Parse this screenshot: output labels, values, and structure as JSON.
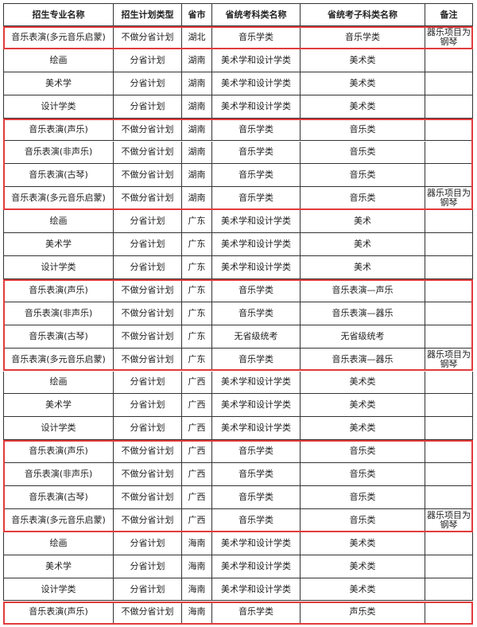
{
  "table": {
    "header": [
      "招生专业名称",
      "招生计划类型",
      "省市",
      "省统考科类名称",
      "省统考子科类名称",
      "备注"
    ],
    "rows": [
      [
        "音乐表演(多元音乐启蒙)",
        "不做分省计划",
        "湖北",
        "音乐学类",
        "音乐学类",
        "器乐项目为钢琴"
      ],
      [
        "绘画",
        "分省计划",
        "湖南",
        "美术学和设计学类",
        "美术类"
      ],
      [
        "美术学",
        "分省计划",
        "湖南",
        "美术学和设计学类",
        "美术类"
      ],
      [
        "设计学类",
        "分省计划",
        "湖南",
        "美术学和设计学类",
        "美术类"
      ],
      [
        "音乐表演(声乐)",
        "不做分省计划",
        "湖南",
        "音乐学类",
        "音乐类"
      ],
      [
        "音乐表演(非声乐)",
        "不做分省计划",
        "湖南",
        "音乐学类",
        "音乐类"
      ],
      [
        "音乐表演(古琴)",
        "不做分省计划",
        "湖南",
        "音乐学类",
        "音乐类"
      ],
      [
        "音乐表演(多元音乐启蒙)",
        "不做分省计划",
        "湖南",
        "音乐学类",
        "音乐类",
        "器乐项目为钢琴"
      ],
      [
        "绘画",
        "分省计划",
        "广东",
        "美术学和设计学类",
        "美术"
      ],
      [
        "美术学",
        "分省计划",
        "广东",
        "美术学和设计学类",
        "美术"
      ],
      [
        "设计学类",
        "分省计划",
        "广东",
        "美术学和设计学类",
        "美术"
      ],
      [
        "音乐表演(声乐)",
        "不做分省计划",
        "广东",
        "音乐学类",
        "音乐表演—声乐"
      ],
      [
        "音乐表演(非声乐)",
        "不做分省计划",
        "广东",
        "音乐学类",
        "音乐表演—器乐"
      ],
      [
        "音乐表演(古琴)",
        "不做分省计划",
        "广东",
        "无省级统考",
        "无省级统考"
      ],
      [
        "音乐表演(多元音乐启蒙)",
        "不做分省计划",
        "广东",
        "音乐学类",
        "音乐表演—器乐",
        "器乐项目为钢琴"
      ],
      [
        "绘画",
        "分省计划",
        "广西",
        "美术学和设计学类",
        "美术类"
      ],
      [
        "美术学",
        "分省计划",
        "广西",
        "美术学和设计学类",
        "美术类"
      ],
      [
        "设计学类",
        "分省计划",
        "广西",
        "美术学和设计学类",
        "美术类"
      ],
      [
        "音乐表演(声乐)",
        "不做分省计划",
        "广西",
        "音乐学类",
        "音乐类"
      ],
      [
        "音乐表演(非声乐)",
        "不做分省计划",
        "广西",
        "音乐学类",
        "音乐类"
      ],
      [
        "音乐表演(古琴)",
        "不做分省计划",
        "广西",
        "音乐学类",
        "音乐类"
      ],
      [
        "音乐表演(多元音乐启蒙)",
        "不做分省计划",
        "广西",
        "音乐学类",
        "音乐类",
        "器乐项目为钢琴"
      ],
      [
        "绘画",
        "分省计划",
        "海南",
        "美术学和设计学类",
        "美术类"
      ],
      [
        "美术学",
        "分省计划",
        "海南",
        "美术学和设计学类",
        "美术类"
      ],
      [
        "设计学类",
        "分省计划",
        "海南",
        "美术学和设计学类",
        "美术类"
      ],
      [
        "音乐表演(声乐)",
        "不做分省计划",
        "海南",
        "音乐学类",
        "声乐类"
      ]
    ]
  }
}
